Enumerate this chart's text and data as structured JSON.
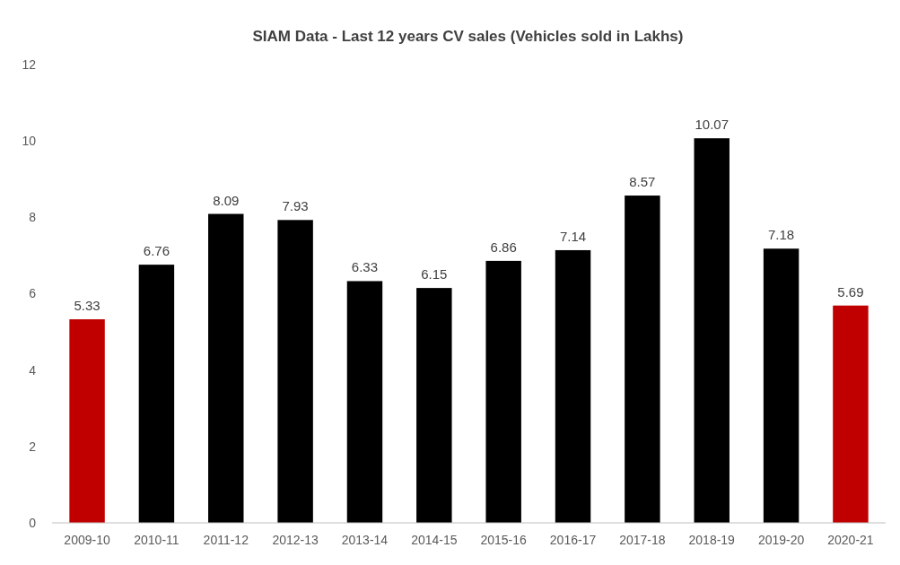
{
  "chart_data": {
    "type": "bar",
    "title": "SIAM Data - Last 12 years CV sales (Vehicles sold in Lakhs)",
    "categories": [
      "2009-10",
      "2010-11",
      "2011-12",
      "2012-13",
      "2013-14",
      "2014-15",
      "2015-16",
      "2016-17",
      "2017-18",
      "2018-19",
      "2019-20",
      "2020-21"
    ],
    "values": [
      5.33,
      6.76,
      8.09,
      7.93,
      6.33,
      6.15,
      6.86,
      7.14,
      8.57,
      10.07,
      7.18,
      5.69
    ],
    "colors": [
      "#c00000",
      "#000000",
      "#000000",
      "#000000",
      "#000000",
      "#000000",
      "#000000",
      "#000000",
      "#000000",
      "#000000",
      "#000000",
      "#c00000"
    ],
    "ylim": [
      0,
      12
    ],
    "yticks": [
      0,
      2,
      4,
      6,
      8,
      10,
      12
    ],
    "data_labels": true
  }
}
